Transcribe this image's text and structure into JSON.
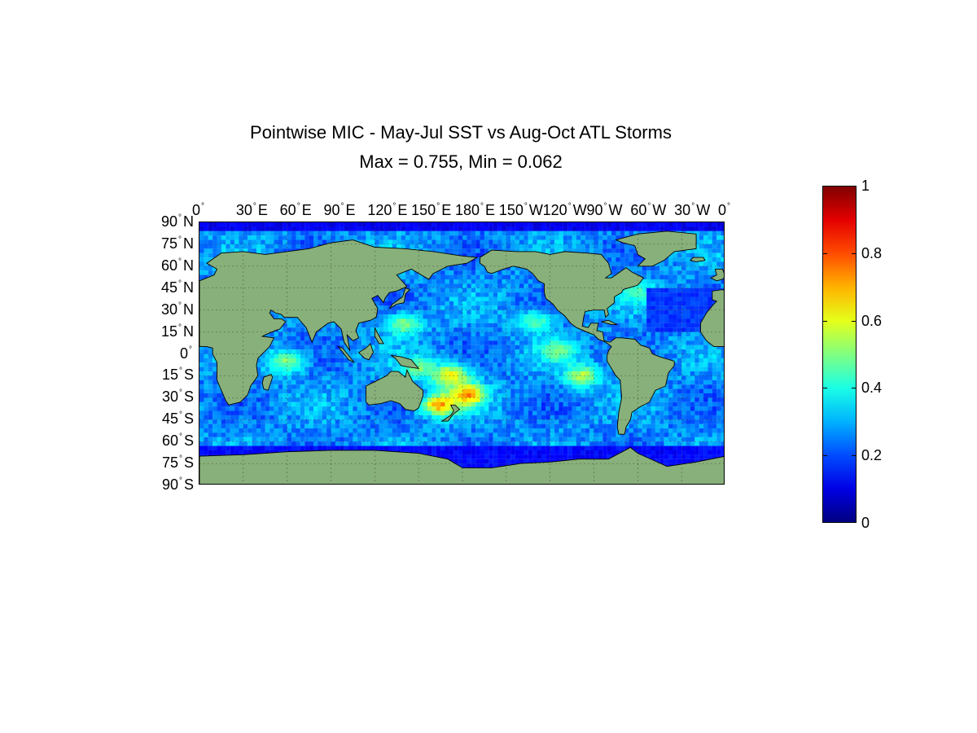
{
  "title": "Pointwise MIC - May-Jul SST vs Aug-Oct ATL Storms",
  "subtitle": "Max = 0.755, Min = 0.062",
  "map": {
    "projection": "equirectangular",
    "lon_range": [
      0,
      360
    ],
    "lat_range": [
      -90,
      90
    ],
    "land_color": "#88b07a",
    "coastline_color": "#000000",
    "grid": "dotted",
    "lon_ticks": [
      {
        "deg": "0",
        "hem": ""
      },
      {
        "deg": "30",
        "hem": "E"
      },
      {
        "deg": "60",
        "hem": "E"
      },
      {
        "deg": "90",
        "hem": "E"
      },
      {
        "deg": "120",
        "hem": "E"
      },
      {
        "deg": "150",
        "hem": "E"
      },
      {
        "deg": "180",
        "hem": "E"
      },
      {
        "deg": "150",
        "hem": "W"
      },
      {
        "deg": "120",
        "hem": "W"
      },
      {
        "deg": "90",
        "hem": "W"
      },
      {
        "deg": "60",
        "hem": "W"
      },
      {
        "deg": "30",
        "hem": "W"
      },
      {
        "deg": "0",
        "hem": ""
      }
    ],
    "lat_ticks": [
      {
        "deg": "90",
        "hem": "N"
      },
      {
        "deg": "75",
        "hem": "N"
      },
      {
        "deg": "60",
        "hem": "N"
      },
      {
        "deg": "45",
        "hem": "N"
      },
      {
        "deg": "30",
        "hem": "N"
      },
      {
        "deg": "15",
        "hem": "N"
      },
      {
        "deg": "0",
        "hem": ""
      },
      {
        "deg": "15",
        "hem": "S"
      },
      {
        "deg": "30",
        "hem": "S"
      },
      {
        "deg": "45",
        "hem": "S"
      },
      {
        "deg": "60",
        "hem": "S"
      },
      {
        "deg": "75",
        "hem": "S"
      },
      {
        "deg": "90",
        "hem": "S"
      }
    ]
  },
  "chart_data": {
    "type": "heatmap",
    "title": "Pointwise MIC - May-Jul SST vs Aug-Oct ATL Storms",
    "subtitle": "Max = 0.755, Min = 0.062",
    "max": 0.755,
    "min": 0.062,
    "colormap": "jet",
    "clim": [
      0,
      1
    ],
    "grid": true,
    "hotspots": [
      {
        "lon": 183,
        "lat": -28,
        "value": 0.75
      },
      {
        "lon": 165,
        "lat": -35,
        "value": 0.7
      },
      {
        "lon": 172,
        "lat": -15,
        "value": 0.65
      },
      {
        "lon": 262,
        "lat": -15,
        "value": 0.55
      },
      {
        "lon": 150,
        "lat": -10,
        "value": 0.5
      },
      {
        "lon": 60,
        "lat": -5,
        "value": 0.5
      },
      {
        "lon": 140,
        "lat": 20,
        "value": 0.5
      },
      {
        "lon": 245,
        "lat": 2,
        "value": 0.5
      },
      {
        "lon": 230,
        "lat": 22,
        "value": 0.45
      },
      {
        "lon": 300,
        "lat": 42,
        "value": 0.45
      }
    ],
    "cold_regions": [
      {
        "lon_range": [
          0,
          360
        ],
        "lat_range": [
          84,
          90
        ],
        "value": 0.08
      },
      {
        "lon_range": [
          0,
          360
        ],
        "lat_range": [
          -78,
          -62
        ],
        "value": 0.1
      },
      {
        "lon_range": [
          305,
          360
        ],
        "lat_range": [
          15,
          45
        ],
        "value": 0.15
      }
    ]
  },
  "colorbar": {
    "range": [
      0,
      1
    ],
    "ticks": [
      "1",
      "0.8",
      "0.6",
      "0.4",
      "0.2",
      "0"
    ]
  }
}
